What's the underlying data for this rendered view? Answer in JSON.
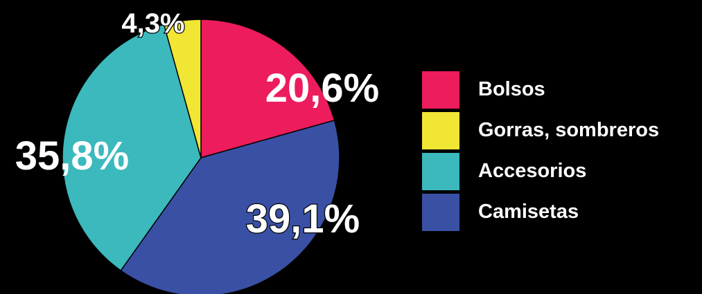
{
  "chart_data": {
    "type": "pie",
    "categories": [
      "Bolsos",
      "Gorras, sombreros",
      "Accesorios",
      "Camisetas"
    ],
    "values": [
      20.6,
      4.3,
      35.8,
      39.1
    ],
    "value_labels": [
      "20,6%",
      "4,3%",
      "35,8%",
      "39,1%"
    ],
    "slice_order_clockwise_from_top": [
      "Bolsos",
      "Camisetas",
      "Accesorios",
      "Gorras, sombreros"
    ],
    "colors": {
      "Bolsos": "#ed1c5c",
      "Gorras, sombreros": "#f2e635",
      "Accesorios": "#3bb9bd",
      "Camisetas": "#3a50a5"
    },
    "background": "#000000",
    "legend_placement": "right",
    "title": "",
    "xlabel": "",
    "ylabel": ""
  },
  "legend": {
    "items": [
      {
        "label": "Bolsos",
        "color": "#ed1c5c"
      },
      {
        "label": "Gorras, sombreros",
        "color": "#f2e635"
      },
      {
        "label": "Accesorios",
        "color": "#3bb9bd"
      },
      {
        "label": "Camisetas",
        "color": "#3a50a5"
      }
    ]
  }
}
